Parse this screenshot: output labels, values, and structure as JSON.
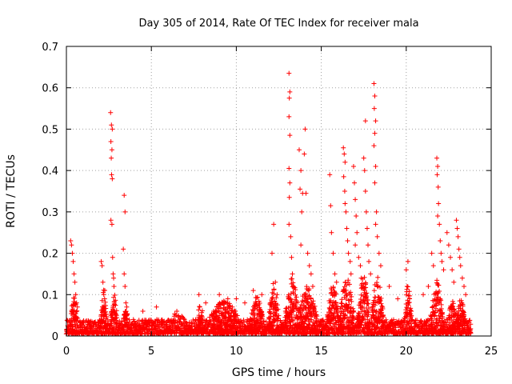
{
  "chart_data": {
    "type": "scatter",
    "title": "Day 305 of 2014, Rate Of TEC Index for receiver mala",
    "xlabel": "GPS time / hours",
    "ylabel": "ROTI / TECUs",
    "xlim": [
      0,
      25
    ],
    "ylim": [
      0,
      0.7
    ],
    "xticks": [
      0,
      5,
      10,
      15,
      20,
      25
    ],
    "yticks": [
      0,
      0.1,
      0.2,
      0.3,
      0.4,
      0.5,
      0.6,
      0.7
    ],
    "grid": true,
    "marker": "+",
    "color": "#ff0000",
    "series": [
      {
        "name": "ROTI",
        "points": [
          [
            0.25,
            0.23
          ],
          [
            0.3,
            0.22
          ],
          [
            0.35,
            0.2
          ],
          [
            0.4,
            0.18
          ],
          [
            0.45,
            0.15
          ],
          [
            0.5,
            0.13
          ],
          [
            0.55,
            0.1
          ],
          [
            0.6,
            0.08
          ],
          [
            0.65,
            0.07
          ],
          [
            2.05,
            0.18
          ],
          [
            2.1,
            0.17
          ],
          [
            2.15,
            0.13
          ],
          [
            2.2,
            0.1
          ],
          [
            2.25,
            0.09
          ],
          [
            2.6,
            0.54
          ],
          [
            2.65,
            0.51
          ],
          [
            2.7,
            0.5
          ],
          [
            2.62,
            0.47
          ],
          [
            2.68,
            0.45
          ],
          [
            2.64,
            0.43
          ],
          [
            2.66,
            0.39
          ],
          [
            2.7,
            0.38
          ],
          [
            2.62,
            0.28
          ],
          [
            2.68,
            0.27
          ],
          [
            2.72,
            0.19
          ],
          [
            2.75,
            0.15
          ],
          [
            2.78,
            0.14
          ],
          [
            2.8,
            0.12
          ],
          [
            3.4,
            0.34
          ],
          [
            3.45,
            0.3
          ],
          [
            3.35,
            0.21
          ],
          [
            3.4,
            0.15
          ],
          [
            3.45,
            0.12
          ],
          [
            3.5,
            0.08
          ],
          [
            3.55,
            0.07
          ],
          [
            4.5,
            0.06
          ],
          [
            5.3,
            0.07
          ],
          [
            6.5,
            0.06
          ],
          [
            7.8,
            0.1
          ],
          [
            8.2,
            0.08
          ],
          [
            9.0,
            0.1
          ],
          [
            9.5,
            0.09
          ],
          [
            10.0,
            0.09
          ],
          [
            10.5,
            0.08
          ],
          [
            11.0,
            0.11
          ],
          [
            11.5,
            0.1
          ],
          [
            12.2,
            0.27
          ],
          [
            12.1,
            0.2
          ],
          [
            12.3,
            0.13
          ],
          [
            12.4,
            0.1
          ],
          [
            13.1,
            0.635
          ],
          [
            13.15,
            0.59
          ],
          [
            13.12,
            0.575
          ],
          [
            13.1,
            0.53
          ],
          [
            13.15,
            0.485
          ],
          [
            13.1,
            0.405
          ],
          [
            13.15,
            0.37
          ],
          [
            13.12,
            0.335
          ],
          [
            13.1,
            0.27
          ],
          [
            13.2,
            0.24
          ],
          [
            13.25,
            0.19
          ],
          [
            13.3,
            0.15
          ],
          [
            13.35,
            0.12
          ],
          [
            13.7,
            0.45
          ],
          [
            13.8,
            0.4
          ],
          [
            13.75,
            0.355
          ],
          [
            13.9,
            0.345
          ],
          [
            13.85,
            0.3
          ],
          [
            13.8,
            0.22
          ],
          [
            14.0,
            0.44
          ],
          [
            14.05,
            0.5
          ],
          [
            14.1,
            0.345
          ],
          [
            14.2,
            0.2
          ],
          [
            14.3,
            0.17
          ],
          [
            14.4,
            0.15
          ],
          [
            14.5,
            0.12
          ],
          [
            15.5,
            0.39
          ],
          [
            15.55,
            0.315
          ],
          [
            15.6,
            0.25
          ],
          [
            15.7,
            0.2
          ],
          [
            15.8,
            0.15
          ],
          [
            15.9,
            0.13
          ],
          [
            16.3,
            0.455
          ],
          [
            16.35,
            0.44
          ],
          [
            16.4,
            0.42
          ],
          [
            16.32,
            0.385
          ],
          [
            16.38,
            0.35
          ],
          [
            16.4,
            0.32
          ],
          [
            16.45,
            0.3
          ],
          [
            16.5,
            0.26
          ],
          [
            16.55,
            0.23
          ],
          [
            16.6,
            0.2
          ],
          [
            16.7,
            0.18
          ],
          [
            16.75,
            0.15
          ],
          [
            16.9,
            0.41
          ],
          [
            16.95,
            0.37
          ],
          [
            17.0,
            0.33
          ],
          [
            17.05,
            0.29
          ],
          [
            17.1,
            0.25
          ],
          [
            17.0,
            0.22
          ],
          [
            17.2,
            0.19
          ],
          [
            17.3,
            0.17
          ],
          [
            17.35,
            0.14
          ],
          [
            17.6,
            0.52
          ],
          [
            17.5,
            0.43
          ],
          [
            17.55,
            0.4
          ],
          [
            17.6,
            0.35
          ],
          [
            17.65,
            0.3
          ],
          [
            17.7,
            0.26
          ],
          [
            17.75,
            0.22
          ],
          [
            17.8,
            0.18
          ],
          [
            17.9,
            0.15
          ],
          [
            18.1,
            0.61
          ],
          [
            18.15,
            0.58
          ],
          [
            18.12,
            0.55
          ],
          [
            18.2,
            0.52
          ],
          [
            18.15,
            0.49
          ],
          [
            18.1,
            0.46
          ],
          [
            18.2,
            0.41
          ],
          [
            18.15,
            0.37
          ],
          [
            18.25,
            0.3
          ],
          [
            18.2,
            0.27
          ],
          [
            18.3,
            0.24
          ],
          [
            18.4,
            0.2
          ],
          [
            18.5,
            0.17
          ],
          [
            19.0,
            0.12
          ],
          [
            19.5,
            0.09
          ],
          [
            20.0,
            0.16
          ],
          [
            20.1,
            0.18
          ],
          [
            20.05,
            0.12
          ],
          [
            20.2,
            0.09
          ],
          [
            20.3,
            0.06
          ],
          [
            21.0,
            0.1
          ],
          [
            21.3,
            0.12
          ],
          [
            21.5,
            0.2
          ],
          [
            21.6,
            0.17
          ],
          [
            21.8,
            0.43
          ],
          [
            21.85,
            0.41
          ],
          [
            21.82,
            0.39
          ],
          [
            21.88,
            0.36
          ],
          [
            21.9,
            0.32
          ],
          [
            21.85,
            0.29
          ],
          [
            21.95,
            0.27
          ],
          [
            22.0,
            0.23
          ],
          [
            22.05,
            0.2
          ],
          [
            22.1,
            0.18
          ],
          [
            22.2,
            0.16
          ],
          [
            22.4,
            0.25
          ],
          [
            22.5,
            0.22
          ],
          [
            22.6,
            0.19
          ],
          [
            22.7,
            0.16
          ],
          [
            22.8,
            0.13
          ],
          [
            22.95,
            0.28
          ],
          [
            23.0,
            0.26
          ],
          [
            23.05,
            0.24
          ],
          [
            23.1,
            0.21
          ],
          [
            23.15,
            0.19
          ],
          [
            23.2,
            0.17
          ],
          [
            23.3,
            0.14
          ],
          [
            23.4,
            0.12
          ],
          [
            23.5,
            0.1
          ]
        ],
        "background": {
          "x_start": 0,
          "x_end": 23.8,
          "baseline_max": 0.035,
          "bursts": [
            {
              "center": 0.45,
              "width": 0.35,
              "peak": 0.09
            },
            {
              "center": 2.2,
              "width": 0.25,
              "peak": 0.12
            },
            {
              "center": 2.8,
              "width": 0.3,
              "peak": 0.1
            },
            {
              "center": 3.5,
              "width": 0.3,
              "peak": 0.06
            },
            {
              "center": 6.5,
              "width": 1.2,
              "peak": 0.05
            },
            {
              "center": 7.9,
              "width": 0.4,
              "peak": 0.07
            },
            {
              "center": 9.3,
              "width": 1.5,
              "peak": 0.08
            },
            {
              "center": 11.2,
              "width": 0.6,
              "peak": 0.09
            },
            {
              "center": 12.2,
              "width": 0.4,
              "peak": 0.14
            },
            {
              "center": 13.3,
              "width": 0.6,
              "peak": 0.14
            },
            {
              "center": 14.2,
              "width": 0.8,
              "peak": 0.12
            },
            {
              "center": 15.7,
              "width": 0.5,
              "peak": 0.13
            },
            {
              "center": 16.5,
              "width": 0.6,
              "peak": 0.14
            },
            {
              "center": 17.5,
              "width": 0.5,
              "peak": 0.14
            },
            {
              "center": 18.3,
              "width": 0.5,
              "peak": 0.14
            },
            {
              "center": 20.1,
              "width": 0.3,
              "peak": 0.12
            },
            {
              "center": 21.8,
              "width": 0.5,
              "peak": 0.13
            },
            {
              "center": 22.7,
              "width": 0.4,
              "peak": 0.08
            },
            {
              "center": 23.2,
              "width": 0.4,
              "peak": 0.09
            }
          ]
        }
      }
    ]
  }
}
